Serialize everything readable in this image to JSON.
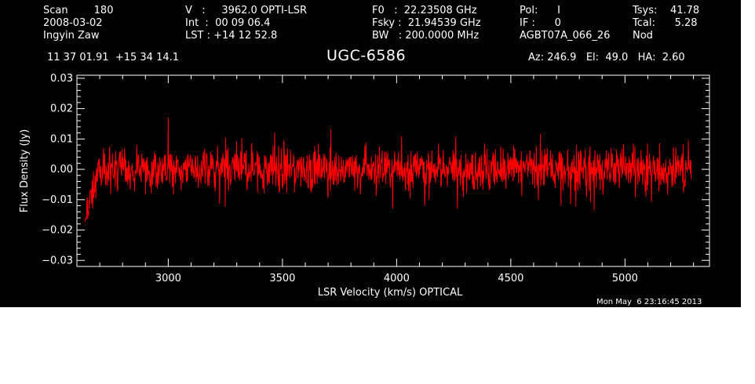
{
  "header": {
    "col1": [
      "Scan        180",
      "2008-03-02",
      "Ingyin Zaw"
    ],
    "col2": [
      "V   :     3962.0 OPTI-LSR",
      "Int  :  00 09 06.4",
      "LST : +14 12 52.8"
    ],
    "col3": [
      "F0   :  22.23508 GHz",
      "Fsky :  21.94539 GHz",
      "BW   : 200.0000 MHz"
    ],
    "col4": [
      "Pol:      I",
      "IF :      0",
      "AGBT07A_066_26"
    ],
    "col5": [
      "Tsys:    41.78",
      "Tcal:      5.28",
      "Nod"
    ],
    "coords": "11 37 01.91  +15 34 14.1",
    "source": "UGC-6586",
    "azel": "Az: 246.9   El:  49.0   HA:  2.60"
  },
  "timestamp": "Mon May  6 23:16:45 2013",
  "colors": {
    "background": "#000000",
    "axes": "#ffffff",
    "trace": "#ff0000"
  },
  "chart_data": {
    "type": "line",
    "xlabel": "LSR Velocity (km/s) OPTICAL",
    "ylabel": "Flux Density (Jy)",
    "xlim": [
      2600,
      5370
    ],
    "ylim": [
      -0.032,
      0.031
    ],
    "x_ticks": [
      3000,
      3500,
      4000,
      4500,
      5000
    ],
    "y_ticks": [
      -0.03,
      -0.02,
      -0.01,
      0.0,
      0.01,
      0.02,
      0.03
    ],
    "y_tick_labels": [
      "−0.03",
      "−0.02",
      "−0.01",
      "0.00",
      "0.01",
      "0.02",
      "0.03"
    ],
    "series": [
      {
        "x_start": 2635,
        "x_end": 5290,
        "n_channels": 1500,
        "description": "noise-like spectrum centered near 0 Jy, rms ~0.005 Jy, dip near start to ~-0.02",
        "values": [
          -0.015,
          -0.018,
          -0.01,
          -0.005,
          0.002,
          0.005,
          0.008,
          -0.004,
          0.006,
          0.003,
          0.001,
          -0.006,
          0.007,
          0.004,
          -0.002,
          0.009,
          -0.003,
          0.005,
          0.0,
          -0.007,
          0.004,
          0.01,
          -0.001,
          0.003,
          -0.005,
          0.006,
          0.002,
          -0.004,
          0.008,
          0.001,
          -0.002,
          0.005,
          -0.006,
          0.003,
          0.007,
          -0.003,
          0.004,
          0.0,
          -0.005,
          0.006
        ]
      }
    ]
  }
}
